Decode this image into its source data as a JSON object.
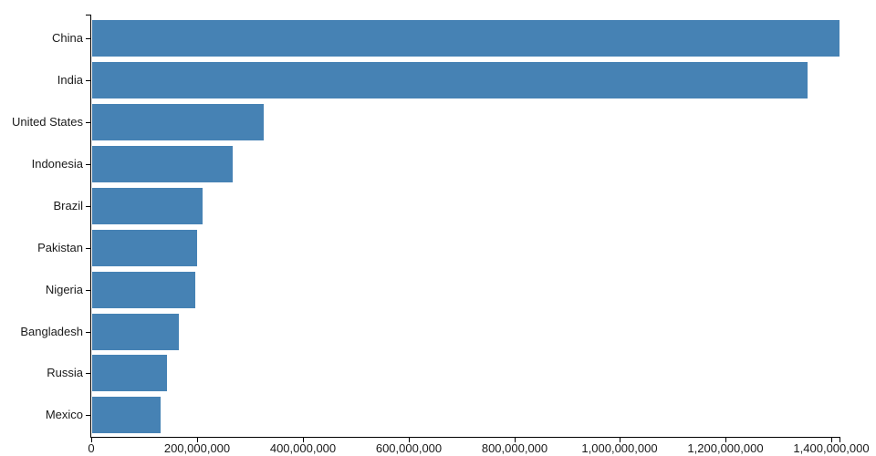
{
  "chart_data": {
    "type": "bar",
    "orientation": "horizontal",
    "title": "",
    "xlabel": "",
    "ylabel": "",
    "grid": false,
    "legend": false,
    "xlim": [
      0,
      1415045928
    ],
    "categories": [
      "China",
      "India",
      "United States",
      "Indonesia",
      "Brazil",
      "Pakistan",
      "Nigeria",
      "Bangladesh",
      "Russia",
      "Mexico"
    ],
    "values": [
      1415045928,
      1354051854,
      326766748,
      266794980,
      210867954,
      200813818,
      195875237,
      166368149,
      143964709,
      130759074
    ],
    "x_ticks": [
      {
        "value": 0,
        "label": "0"
      },
      {
        "value": 200000000,
        "label": "200,000,000"
      },
      {
        "value": 400000000,
        "label": "400,000,000"
      },
      {
        "value": 600000000,
        "label": "600,000,000"
      },
      {
        "value": 800000000,
        "label": "800,000,000"
      },
      {
        "value": 1000000000,
        "label": "1,000,000,000"
      },
      {
        "value": 1200000000,
        "label": "1,200,000,000"
      },
      {
        "value": 1400000000,
        "label": "1,400,000,000"
      }
    ],
    "colors": {
      "bar": "#4682b4",
      "axis": "#000000",
      "text": "#1a1a1a"
    }
  }
}
